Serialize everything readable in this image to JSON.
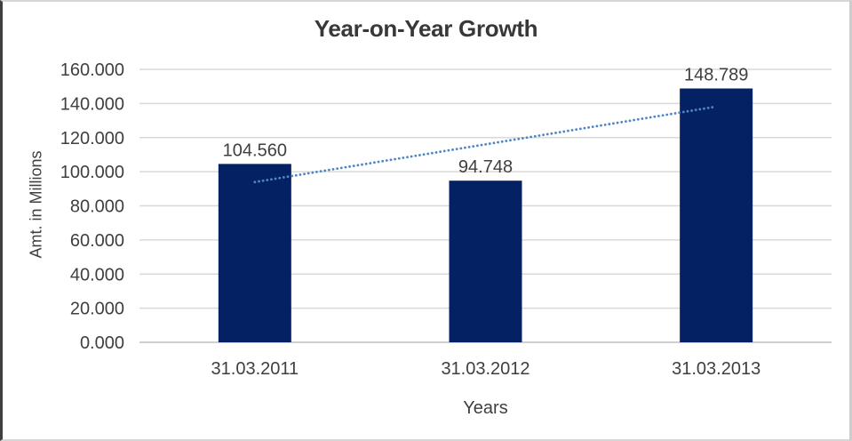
{
  "chart_data": {
    "type": "bar",
    "title": "Year-on-Year Growth",
    "xlabel": "Years",
    "ylabel": "Amt. in Millions",
    "categories": [
      "31.03.2011",
      "31.03.2012",
      "31.03.2013"
    ],
    "values": [
      104.56,
      94.748,
      148.789
    ],
    "data_labels": [
      "104.560",
      "94.748",
      "148.789"
    ],
    "y_ticks": [
      "0.000",
      "20.000",
      "40.000",
      "60.000",
      "80.000",
      "100.000",
      "120.000",
      "140.000",
      "160.000"
    ],
    "ylim": [
      0,
      160
    ],
    "grid": "horizontal gridlines on",
    "legend": "none",
    "bar_color": "#042263",
    "grid_color": "#d9d9d9",
    "axis_line_color": "#bfbfbf",
    "text_color": "#3f3f3f",
    "trendline": {
      "type": "linear",
      "style": "dotted",
      "color": "#4f86c6",
      "spans": "first category center to last category center"
    }
  }
}
